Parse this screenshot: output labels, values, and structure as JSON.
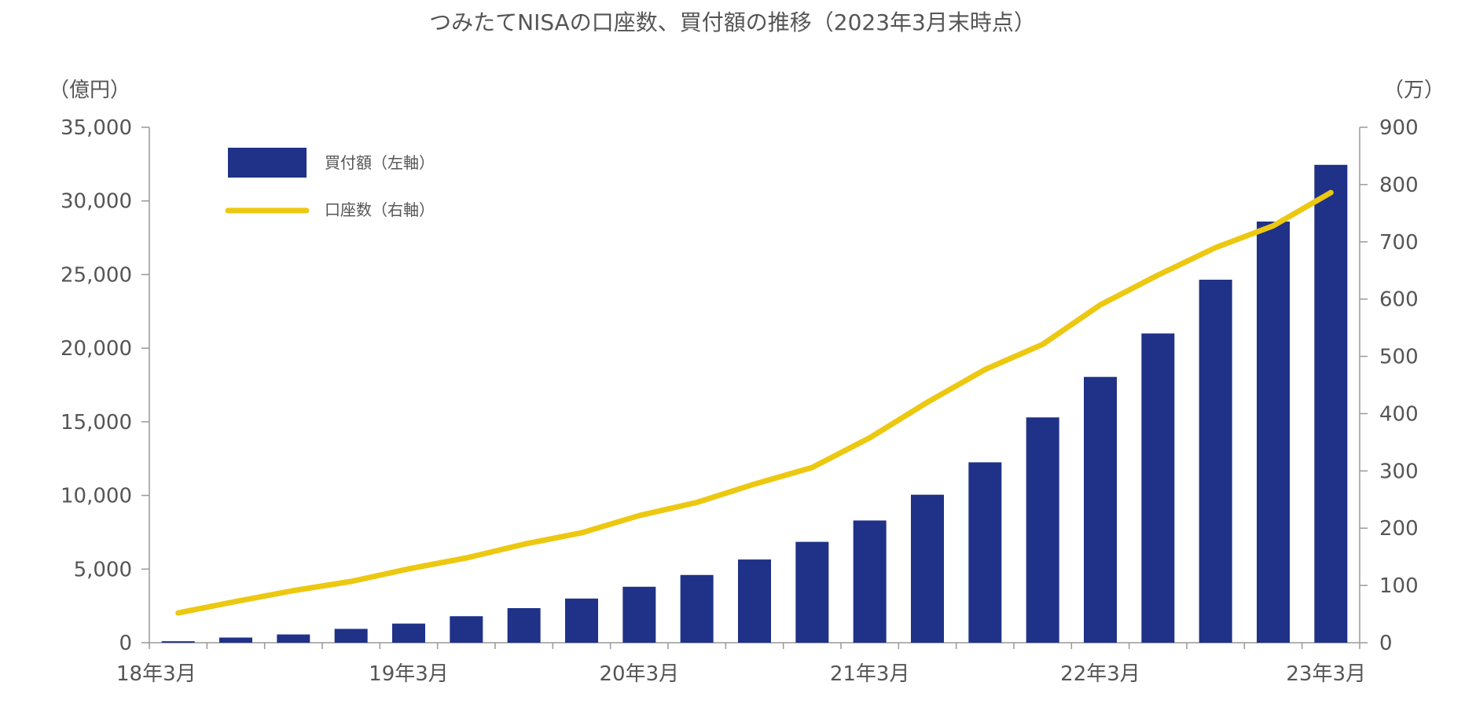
{
  "colors": {
    "bar": "#1f3288",
    "line": "#ecc810",
    "axis": "#999999",
    "text": "#555555"
  },
  "chart_data": {
    "type": "bar",
    "title": "つみたてNISAの口座数、買付額の推移（2023年3月末時点）",
    "left_axis": {
      "unit_label": "（億円）",
      "ylim": [
        0,
        35000
      ],
      "ticks": [
        "35,000",
        "30,000",
        "25,000",
        "20,000",
        "15,000",
        "10,000",
        "5,000",
        "0"
      ]
    },
    "right_axis": {
      "unit_label": "（万）",
      "ylim": [
        0,
        900
      ],
      "ticks": [
        "900",
        "800",
        "700",
        "600",
        "500",
        "400",
        "300",
        "200",
        "100",
        "0"
      ]
    },
    "x_tick_labels": [
      "18年3月",
      "19年3月",
      "20年3月",
      "21年3月",
      "22年3月",
      "23年3月"
    ],
    "x_tick_positions": [
      0,
      4,
      8,
      12,
      16,
      20
    ],
    "grid": false,
    "legend_position": "top-left",
    "series": [
      {
        "name": "買付額（左軸）",
        "kind": "bar",
        "axis": "left",
        "values": [
          100,
          350,
          560,
          940,
          1300,
          1800,
          2350,
          3000,
          3800,
          4600,
          5650,
          6850,
          8300,
          10050,
          12250,
          15300,
          18050,
          21000,
          24650,
          28600,
          32450
        ]
      },
      {
        "name": "口座数（右軸）",
        "kind": "line",
        "axis": "right",
        "values": [
          52,
          72,
          91,
          107,
          129,
          148,
          172,
          192,
          222,
          245,
          277,
          306,
          358,
          420,
          477,
          521,
          590,
          642,
          690,
          728,
          786
        ]
      }
    ]
  }
}
